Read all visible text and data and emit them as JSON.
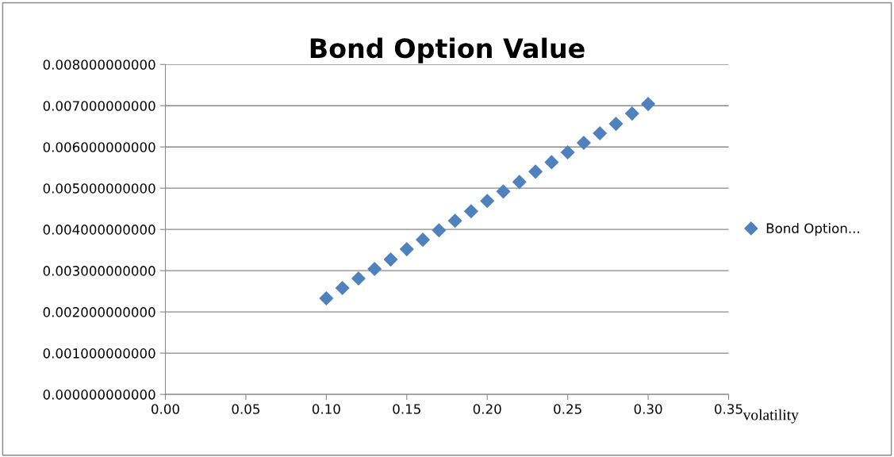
{
  "chart_data": {
    "type": "scatter",
    "title": "Bond Option Value",
    "xlabel": "volatility",
    "x": [
      0.1,
      0.11,
      0.12,
      0.13,
      0.14,
      0.15,
      0.16,
      0.17,
      0.18,
      0.19,
      0.2,
      0.21,
      0.22,
      0.23,
      0.24,
      0.25,
      0.26,
      0.27,
      0.28,
      0.29,
      0.3
    ],
    "series": [
      {
        "name": "Bond Option...",
        "color": "#4f81bd",
        "values": [
          0.00233,
          0.00258,
          0.00281,
          0.00304,
          0.00327,
          0.00352,
          0.00375,
          0.00398,
          0.00421,
          0.00444,
          0.00469,
          0.00492,
          0.00515,
          0.0054,
          0.00563,
          0.00587,
          0.0061,
          0.00633,
          0.00656,
          0.00681,
          0.00704
        ]
      }
    ],
    "xlim": [
      0,
      0.35
    ],
    "xticks": [
      {
        "value": 0,
        "label": "0.00"
      },
      {
        "value": 0.05,
        "label": "0.05"
      },
      {
        "value": 0.1,
        "label": "0.10"
      },
      {
        "value": 0.15,
        "label": "0.15"
      },
      {
        "value": 0.2,
        "label": "0.20"
      },
      {
        "value": 0.25,
        "label": "0.25"
      },
      {
        "value": 0.3,
        "label": "0.30"
      },
      {
        "value": 0.35,
        "label": "0.35"
      }
    ],
    "ylim": [
      0,
      0.008
    ],
    "yticks": [
      {
        "value": 0,
        "label": "0.000000000000"
      },
      {
        "value": 0.001,
        "label": "0.001000000000"
      },
      {
        "value": 0.002,
        "label": "0.002000000000"
      },
      {
        "value": 0.003,
        "label": "0.003000000000"
      },
      {
        "value": 0.004,
        "label": "0.004000000000"
      },
      {
        "value": 0.005,
        "label": "0.005000000000"
      },
      {
        "value": 0.006,
        "label": "0.006000000000"
      },
      {
        "value": 0.007,
        "label": "0.007000000000"
      },
      {
        "value": 0.008,
        "label": "0.008000000000"
      }
    ],
    "grid": "y",
    "legend": "right",
    "marker": "diamond"
  }
}
